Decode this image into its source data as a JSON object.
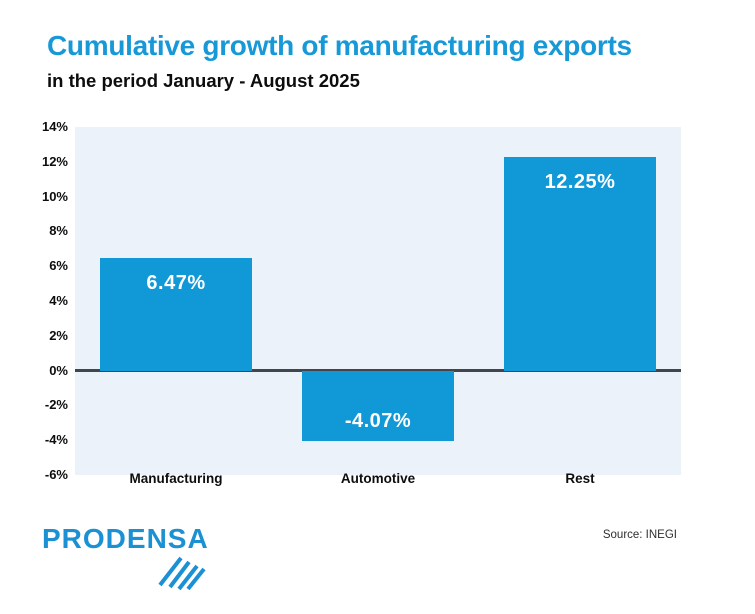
{
  "header": {
    "title": "Cumulative growth of manufacturing exports",
    "subtitle": "in the period January - August 2025"
  },
  "chart_data": {
    "type": "bar",
    "title": "Cumulative growth of manufacturing exports",
    "subtitle": "in the period January - August 2025",
    "categories": [
      "Manufacturing",
      "Automotive",
      "Rest"
    ],
    "values": [
      6.47,
      -4.07,
      12.25
    ],
    "value_labels": [
      "6.47%",
      "-4.07%",
      "12.25%"
    ],
    "xlabel": "",
    "ylabel": "",
    "ylim": [
      -6,
      14
    ],
    "ytick_step": 2,
    "yticks": [
      "14%",
      "12%",
      "10%",
      "8%",
      "6%",
      "4%",
      "2%",
      "0%",
      "-2%",
      "-4%",
      "-6%"
    ],
    "grid": false,
    "legend": false,
    "bar_color": "#1098D7",
    "plot_background": "#EBF2F9",
    "zero_line_color": "#40464B"
  },
  "footer": {
    "logo_text": "PRODENSA",
    "source": "Source: INEGI"
  },
  "colors": {
    "title_blue": "#1799D8",
    "bar_blue": "#1098D7",
    "plot_bg": "#EBF2F9",
    "zero_line": "#40464B",
    "text_dark": "#0D0D0D",
    "logo_blue": "#1B90D2"
  }
}
